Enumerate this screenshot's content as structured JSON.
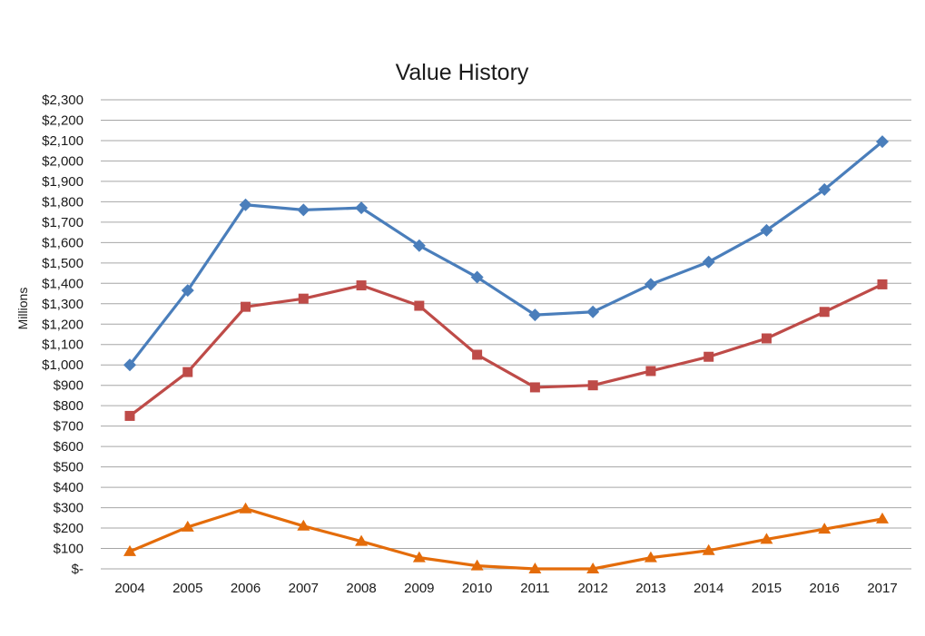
{
  "chart_data": {
    "type": "line",
    "title": "Value History",
    "xlabel": "",
    "ylabel": "Millions",
    "ylim": [
      0,
      2300
    ],
    "y_ticks": [
      0,
      100,
      200,
      300,
      400,
      500,
      600,
      700,
      800,
      900,
      1000,
      1100,
      1200,
      1300,
      1400,
      1500,
      1600,
      1700,
      1800,
      1900,
      2000,
      2100,
      2200,
      2300
    ],
    "y_tick_labels": [
      "$-",
      "$100",
      "$200",
      "$300",
      "$400",
      "$500",
      "$600",
      "$700",
      "$800",
      "$900",
      "$1,000",
      "$1,100",
      "$1,200",
      "$1,300",
      "$1,400",
      "$1,500",
      "$1,600",
      "$1,700",
      "$1,800",
      "$1,900",
      "$2,000",
      "$2,100",
      "$2,200",
      "$2,300"
    ],
    "categories": [
      "2004",
      "2005",
      "2006",
      "2007",
      "2008",
      "2009",
      "2010",
      "2011",
      "2012",
      "2013",
      "2014",
      "2015",
      "2016",
      "2017"
    ],
    "grid": true,
    "legend": "none",
    "series": [
      {
        "color": "#4a7ebb",
        "marker": "diamond",
        "values": [
          1000,
          1365,
          1785,
          1760,
          1770,
          1585,
          1430,
          1245,
          1260,
          1395,
          1505,
          1660,
          1860,
          2095
        ]
      },
      {
        "color": "#be4b48",
        "marker": "square",
        "values": [
          750,
          965,
          1285,
          1325,
          1390,
          1290,
          1050,
          890,
          900,
          970,
          1040,
          1130,
          1260,
          1395
        ]
      },
      {
        "color": "#e46c0a",
        "marker": "triangle",
        "values": [
          85,
          205,
          295,
          210,
          135,
          55,
          15,
          0,
          0,
          55,
          90,
          145,
          195,
          245
        ]
      }
    ]
  }
}
